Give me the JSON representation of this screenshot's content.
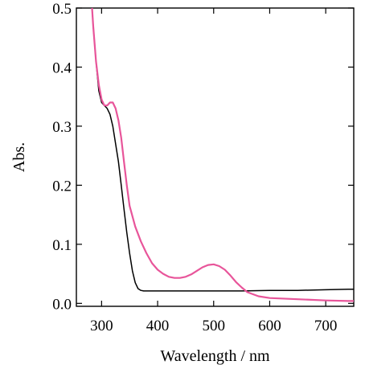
{
  "chart_data": {
    "type": "line",
    "title": "",
    "xlabel": "Wavelength / nm",
    "ylabel": "Abs.",
    "xlim": [
      255,
      750
    ],
    "ylim": [
      -0.005,
      0.5
    ],
    "xticks": [
      300,
      400,
      500,
      600,
      700
    ],
    "xtick_labels": [
      "300",
      "400",
      "500",
      "600",
      "700"
    ],
    "yticks": [
      0.0,
      0.1,
      0.2,
      0.3,
      0.4,
      0.5
    ],
    "ytick_labels": [
      "0.0",
      "0.1",
      "0.2",
      "0.3",
      "0.4",
      "0.5"
    ],
    "grid": false,
    "legend": "none",
    "series": [
      {
        "color": "#000000",
        "x": [
          283,
          285,
          290,
          295,
          300,
          305,
          310,
          315,
          320,
          325,
          330,
          335,
          340,
          345,
          350,
          355,
          360,
          365,
          370,
          375,
          380,
          390,
          400,
          420,
          450,
          500,
          550,
          600,
          650,
          700,
          740,
          750
        ],
        "y": [
          0.5,
          0.47,
          0.41,
          0.36,
          0.34,
          0.335,
          0.33,
          0.32,
          0.3,
          0.27,
          0.24,
          0.2,
          0.16,
          0.12,
          0.085,
          0.055,
          0.035,
          0.025,
          0.022,
          0.021,
          0.021,
          0.021,
          0.021,
          0.021,
          0.021,
          0.021,
          0.021,
          0.022,
          0.022,
          0.023,
          0.024,
          0.024
        ]
      },
      {
        "color": "#e8559a",
        "x": [
          283,
          285,
          290,
          295,
          300,
          305,
          310,
          315,
          320,
          325,
          330,
          335,
          340,
          345,
          350,
          360,
          370,
          380,
          390,
          400,
          410,
          420,
          430,
          440,
          450,
          460,
          470,
          480,
          490,
          500,
          510,
          520,
          530,
          540,
          550,
          560,
          580,
          600,
          650,
          700,
          740,
          750
        ],
        "y": [
          0.5,
          0.47,
          0.41,
          0.37,
          0.345,
          0.335,
          0.335,
          0.34,
          0.34,
          0.33,
          0.31,
          0.28,
          0.24,
          0.2,
          0.165,
          0.13,
          0.105,
          0.085,
          0.068,
          0.057,
          0.05,
          0.045,
          0.043,
          0.043,
          0.045,
          0.049,
          0.055,
          0.061,
          0.065,
          0.066,
          0.063,
          0.057,
          0.047,
          0.036,
          0.027,
          0.019,
          0.012,
          0.009,
          0.007,
          0.005,
          0.004,
          0.004
        ]
      }
    ]
  }
}
